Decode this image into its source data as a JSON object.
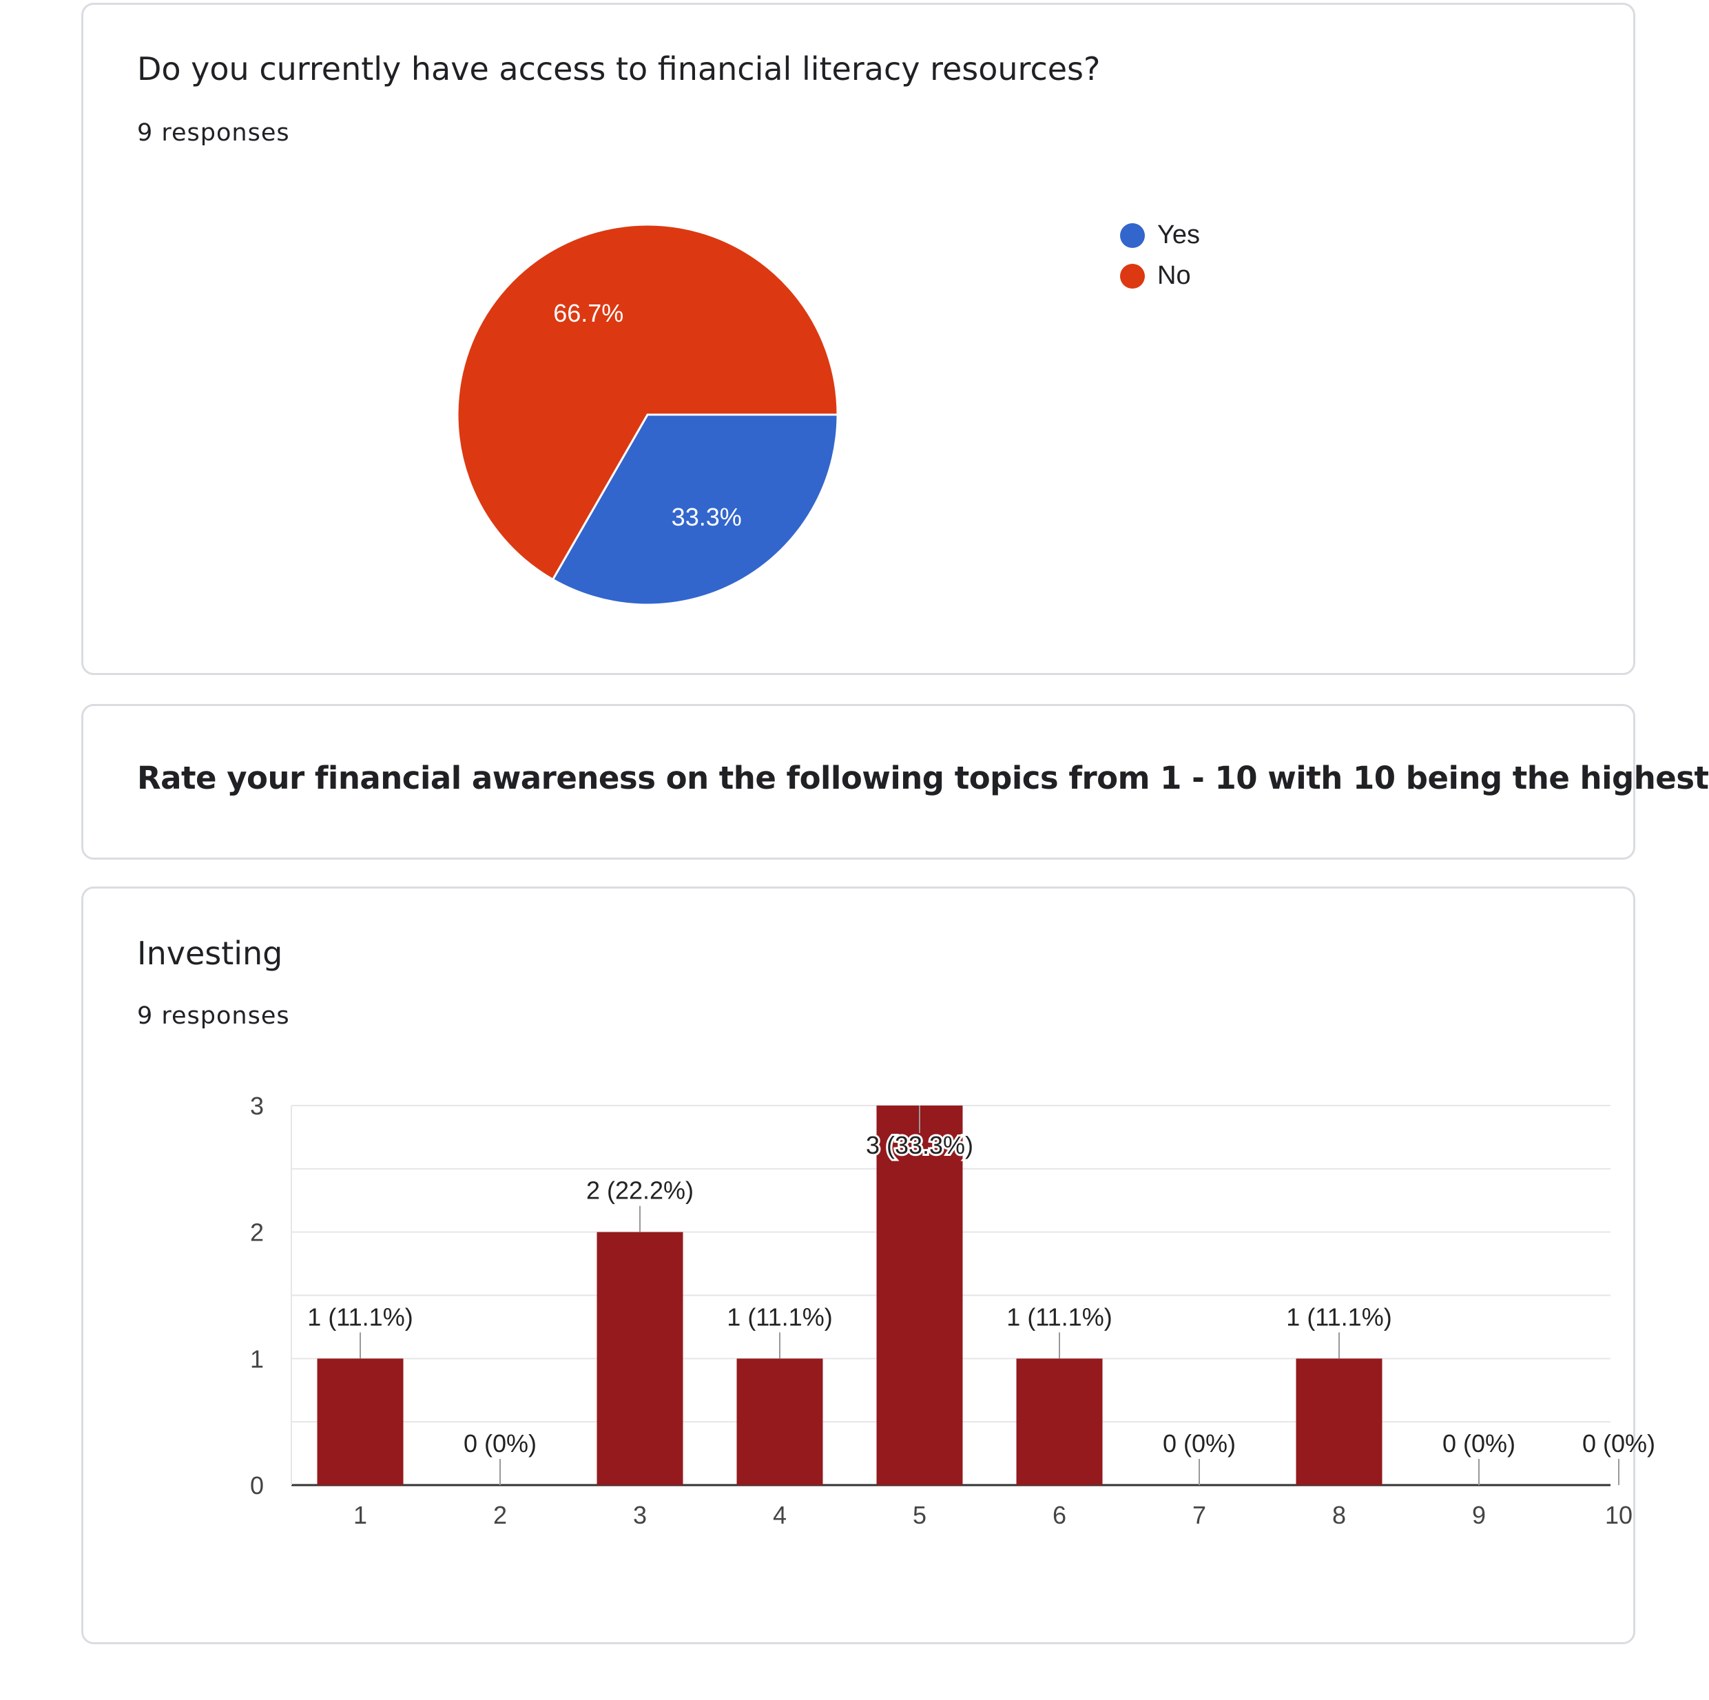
{
  "q1": {
    "title": "Do you currently have access to financial literacy resources?",
    "responses": "9 responses"
  },
  "section": {
    "heading": "Rate your financial awareness on the following topics from 1 - 10 with 10 being the highest"
  },
  "q2": {
    "title": "Investing",
    "responses": "9 responses"
  },
  "colors": {
    "yes": "#3366cc",
    "no": "#dc3912",
    "bar": "#941a1d",
    "card_border": "#dadce0"
  },
  "chart_data": [
    {
      "type": "pie",
      "title": "Do you currently have access to financial literacy resources?",
      "legend_position": "right",
      "slices": [
        {
          "label": "Yes",
          "value": 33.3,
          "display": "33.3%",
          "color": "#3366cc"
        },
        {
          "label": "No",
          "value": 66.7,
          "display": "66.7%",
          "color": "#dc3912"
        }
      ]
    },
    {
      "type": "bar",
      "title": "Investing",
      "categories": [
        "1",
        "2",
        "3",
        "4",
        "5",
        "6",
        "7",
        "8",
        "9",
        "10"
      ],
      "values": [
        1,
        0,
        2,
        1,
        3,
        1,
        0,
        1,
        0,
        0
      ],
      "labels": [
        "1 (11.1%)",
        "0 (0%)",
        "2 (22.2%)",
        "1 (11.1%)",
        "3 (33.3%)",
        "1 (11.1%)",
        "0 (0%)",
        "1 (11.1%)",
        "0 (0%)",
        "0 (0%)"
      ],
      "ylim": [
        0,
        3
      ],
      "yticks": [
        "0",
        "1",
        "2",
        "3"
      ],
      "grid": true
    }
  ]
}
